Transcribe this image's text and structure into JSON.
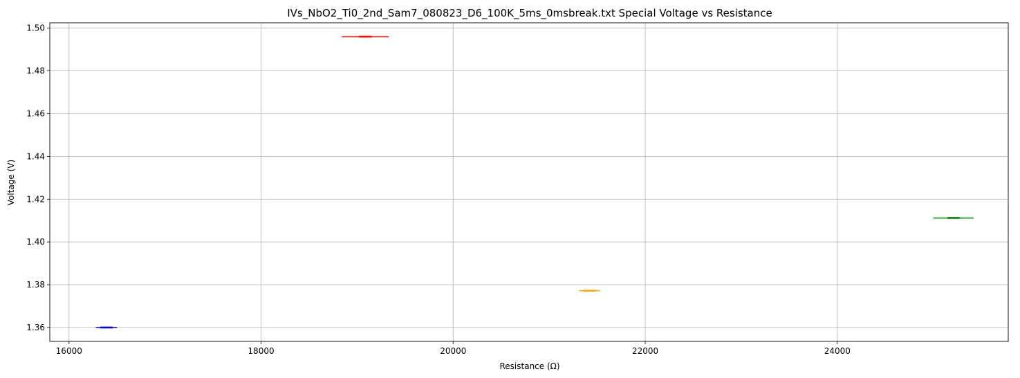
{
  "chart_data": {
    "type": "scatter",
    "title": "IVs_NbO2_Ti0_2nd_Sam7_080823_D6_100K_5ms_0msbreak.txt Special Voltage vs Resistance",
    "xlabel": "Resistance (Ω)",
    "ylabel": "Voltage (V)",
    "xlim": [
      15800,
      25780
    ],
    "ylim": [
      1.3535,
      1.5025
    ],
    "xticks": [
      16000,
      18000,
      20000,
      22000,
      24000
    ],
    "xtick_labels": [
      "16000",
      "18000",
      "20000",
      "22000",
      "24000"
    ],
    "yticks": [
      1.36,
      1.38,
      1.4,
      1.42,
      1.44,
      1.46,
      1.48,
      1.5
    ],
    "ytick_labels": [
      "1.36",
      "1.38",
      "1.40",
      "1.42",
      "1.44",
      "1.46",
      "1.48",
      "1.50"
    ],
    "grid": true,
    "segments": [
      {
        "color": "#0000ff",
        "x": [
          16280,
          16500
        ],
        "y": [
          1.36,
          1.36
        ]
      },
      {
        "color": "#ff0000",
        "x": [
          18840,
          19330
        ],
        "y": [
          1.496,
          1.496
        ]
      },
      {
        "color": "#ffa500",
        "x": [
          21310,
          21530
        ],
        "y": [
          1.3772,
          1.3772
        ]
      },
      {
        "color": "#008000",
        "x": [
          25000,
          25420
        ],
        "y": [
          1.4112,
          1.4112
        ]
      }
    ]
  }
}
